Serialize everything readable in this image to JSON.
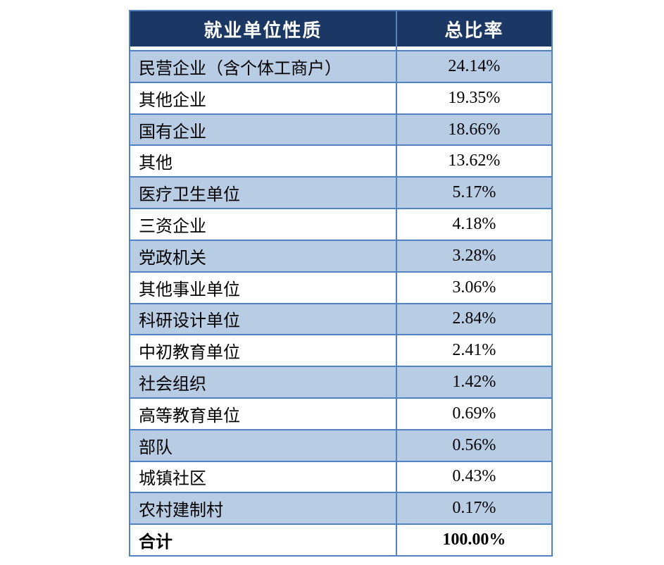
{
  "table": {
    "col_headers": {
      "unit_type": "就业单位性质",
      "ratio": "总比率"
    },
    "rows": [
      {
        "label": "民营企业（含个体工商户）",
        "value": "24.14%"
      },
      {
        "label": "其他企业",
        "value": "19.35%"
      },
      {
        "label": "国有企业",
        "value": "18.66%"
      },
      {
        "label": "其他",
        "value": "13.62%"
      },
      {
        "label": "医疗卫生单位",
        "value": "5.17%"
      },
      {
        "label": "三资企业",
        "value": "4.18%"
      },
      {
        "label": "党政机关",
        "value": "3.28%"
      },
      {
        "label": "其他事业单位",
        "value": "3.06%"
      },
      {
        "label": "科研设计单位",
        "value": "2.84%"
      },
      {
        "label": "中初教育单位",
        "value": "2.41%"
      },
      {
        "label": "社会组织",
        "value": "1.42%"
      },
      {
        "label": "高等教育单位",
        "value": "0.69%"
      },
      {
        "label": "部队",
        "value": "0.56%"
      },
      {
        "label": "城镇社区",
        "value": "0.43%"
      },
      {
        "label": "农村建制村",
        "value": "0.17%"
      },
      {
        "label": "合计",
        "value": "100.00%",
        "is_total": true
      }
    ],
    "colors": {
      "header_bg": "#1B3764",
      "header_text": "#FFFFFF",
      "stripe_bg": "#B8CCE4",
      "border": "#5183C4",
      "body_text": "#000000",
      "page_bg": "#FFFFFF"
    }
  }
}
